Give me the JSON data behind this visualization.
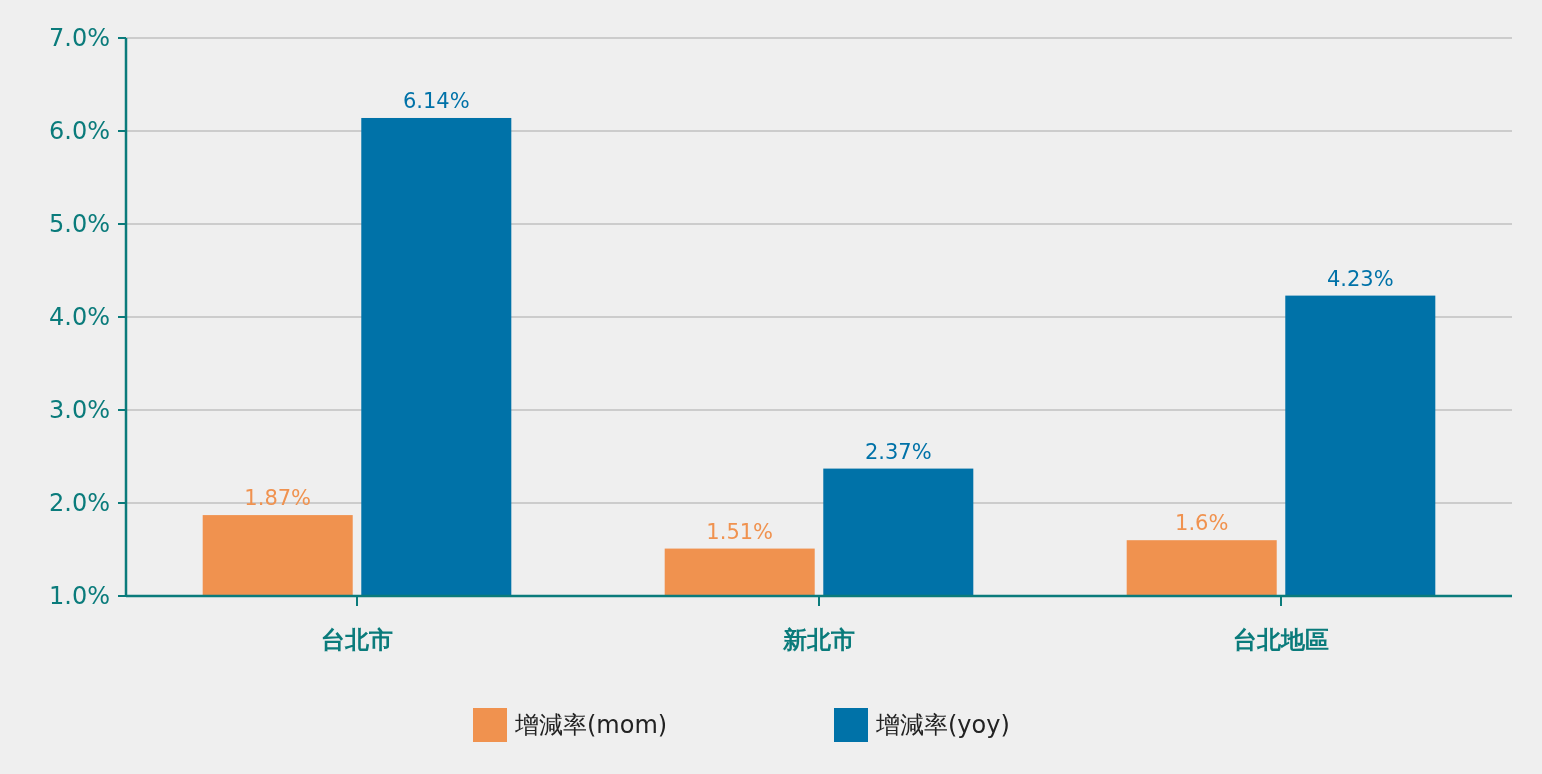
{
  "chart_data": {
    "type": "bar",
    "categories": [
      "台北市",
      "新北市",
      "台北地區"
    ],
    "series": [
      {
        "name": "增減率(mom)",
        "color": "#f0924f",
        "values": [
          1.87,
          1.51,
          1.6
        ],
        "value_labels": [
          "1.87%",
          "1.51%",
          "1.6%"
        ]
      },
      {
        "name": "增減率(yoy)",
        "color": "#0072a8",
        "values": [
          6.14,
          2.37,
          4.23
        ],
        "value_labels": [
          "6.14%",
          "2.37%",
          "4.23%"
        ]
      }
    ],
    "ylim": [
      1,
      7
    ],
    "yticks": [
      {
        "value": 1,
        "label": "1.0%"
      },
      {
        "value": 2,
        "label": "2.0%"
      },
      {
        "value": 3,
        "label": "3.0%"
      },
      {
        "value": 4,
        "label": "4.0%"
      },
      {
        "value": 5,
        "label": "5.0%"
      },
      {
        "value": 6,
        "label": "6.0%"
      },
      {
        "value": 7,
        "label": "7.0%"
      }
    ],
    "grid": "y",
    "legend": "bottom"
  }
}
